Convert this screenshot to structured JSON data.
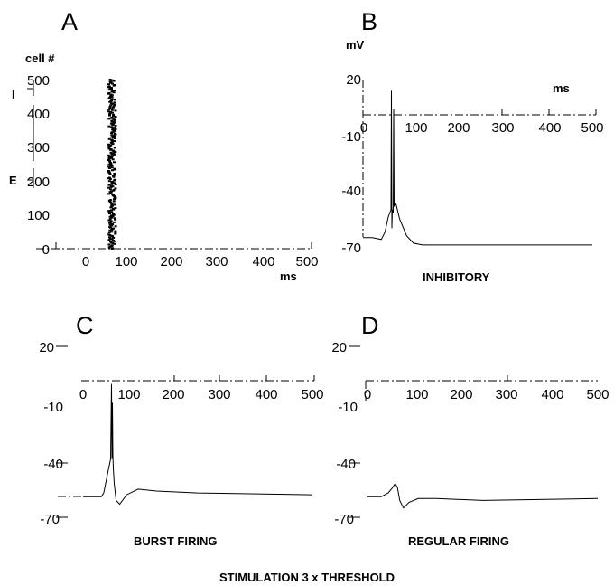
{
  "figure": {
    "footer": "STIMULATION 3 x THRESHOLD"
  },
  "panels": {
    "A": {
      "letter": "A",
      "ylabel": "cell #",
      "xlabel": "ms",
      "group_top": "I",
      "group_bottom": "E",
      "yticks": [
        "500",
        "400",
        "300",
        "200",
        "100",
        "0"
      ],
      "xticks": [
        "0",
        "100",
        "200",
        "300",
        "400",
        "500"
      ]
    },
    "B": {
      "letter": "B",
      "ylabel": "mV",
      "xlabel": "ms",
      "caption": "INHIBITORY",
      "yticks": [
        "20",
        "-10",
        "-40",
        "-70"
      ],
      "xticks": [
        "0",
        "100",
        "200",
        "300",
        "400",
        "500"
      ]
    },
    "C": {
      "letter": "C",
      "caption": "BURST FIRING",
      "yticks": [
        "20",
        "-10",
        "-40",
        "-70"
      ],
      "xticks": [
        "0",
        "100",
        "200",
        "300",
        "400",
        "500"
      ]
    },
    "D": {
      "letter": "D",
      "caption": "REGULAR FIRING",
      "yticks": [
        "20",
        "-10",
        "-40",
        "-70"
      ],
      "xticks": [
        "0",
        "100",
        "200",
        "300",
        "400",
        "500"
      ]
    }
  },
  "chart_data": [
    {
      "panel": "A",
      "type": "scatter",
      "xlabel": "ms",
      "ylabel": "cell #",
      "xlim": [
        0,
        500
      ],
      "ylim": [
        0,
        500
      ],
      "raster": {
        "x_range": [
          57,
          73
        ],
        "cell_range": [
          0,
          500
        ]
      }
    },
    {
      "panel": "B",
      "type": "line",
      "xlabel": "ms",
      "ylabel": "mV",
      "xlim": [
        0,
        500
      ],
      "ylim": [
        -70,
        20
      ],
      "x": [
        0,
        20,
        40,
        48,
        55,
        58,
        61,
        62,
        63,
        64,
        66,
        67,
        68,
        72,
        80,
        95,
        110,
        130,
        160,
        500
      ],
      "y": [
        -65,
        -65,
        -66,
        -62,
        -54,
        -52,
        -50,
        14,
        -60,
        -50,
        -52,
        4,
        -48,
        -47,
        -55,
        -64,
        -68,
        -69,
        -69,
        -69
      ]
    },
    {
      "panel": "C",
      "type": "line",
      "xlim": [
        0,
        500
      ],
      "ylim": [
        -70,
        20
      ],
      "x": [
        0,
        20,
        40,
        45,
        50,
        55,
        60,
        62,
        63,
        64,
        65,
        66,
        68,
        72,
        80,
        95,
        120,
        160,
        250,
        500
      ],
      "y": [
        -60,
        -60,
        -60,
        -58,
        -52,
        -46,
        -40,
        0,
        -40,
        -10,
        -38,
        -45,
        -53,
        -62,
        -64,
        -59,
        -56,
        -57,
        -58,
        -59
      ]
    },
    {
      "panel": "D",
      "type": "line",
      "xlim": [
        0,
        500
      ],
      "ylim": [
        -70,
        20
      ],
      "x": [
        0,
        30,
        45,
        55,
        60,
        65,
        70,
        78,
        90,
        110,
        150,
        250,
        500
      ],
      "y": [
        -60,
        -60,
        -58,
        -55,
        -53,
        -55,
        -62,
        -66,
        -63,
        -61,
        -61,
        -62,
        -61
      ]
    }
  ]
}
